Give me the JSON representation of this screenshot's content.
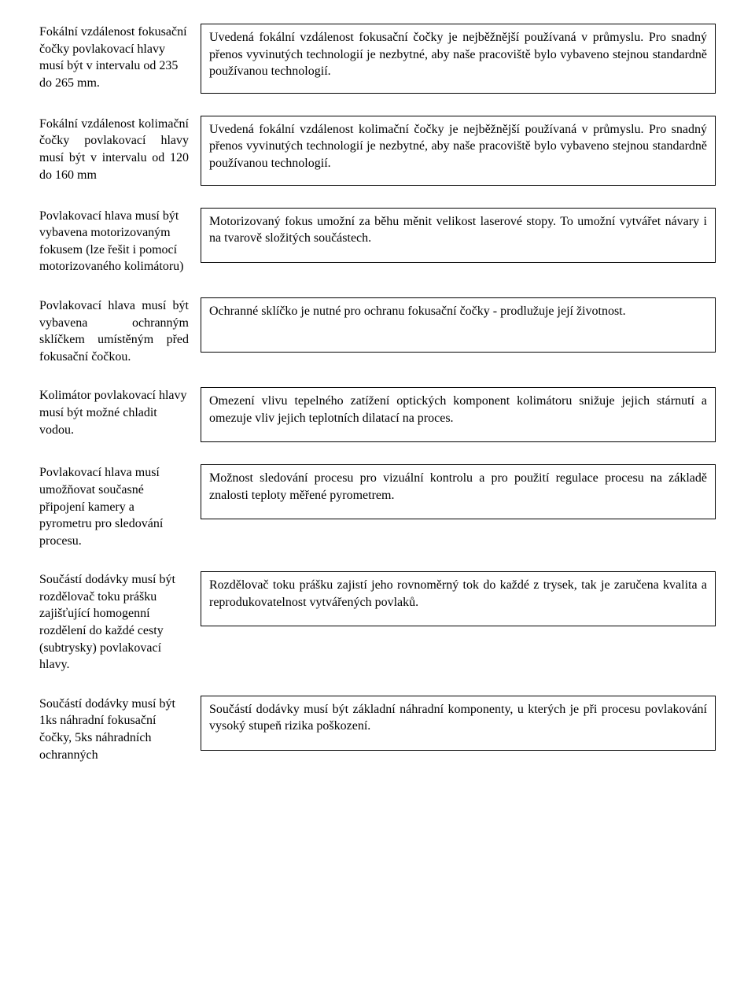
{
  "rows": [
    {
      "left": "Fokální vzdálenost fokusační čočky povlakovací hlavy musí být v intervalu od 235 do 265 mm.",
      "leftClass": "left-normal",
      "right": "Uvedená fokální vzdálenost fokusační čočky je nejběžnější používaná v průmyslu. Pro snadný přenos vyvinutých technologií je nezbytné, aby naše pracoviště bylo vybaveno stejnou standardně používanou technologií."
    },
    {
      "left": "Fokální vzdálenost kolimační čočky povlakovací hlavy musí být v intervalu od 120 do 160 mm",
      "leftClass": "left-justify",
      "right": "Uvedená fokální vzdálenost kolimační čočky je nejběžnější používaná v průmyslu. Pro snadný přenos vyvinutých technologií je nezbytné, aby naše pracoviště bylo vybaveno stejnou standardně používanou technologií."
    },
    {
      "left": "Povlakovací hlava musí být vybavena motorizovaným fokusem (lze řešit i pomocí motorizovaného kolimátoru)",
      "leftClass": "left-normal",
      "right": "Motorizovaný fokus umožní za běhu měnit velikost laserové stopy. To umožní vytvářet návary i na tvarově složitých součástech."
    },
    {
      "left": "Povlakovací hlava musí být vybavena ochranným sklíčkem umístěným před fokusační čočkou.",
      "leftClass": "left-justify",
      "right": "Ochranné sklíčko je nutné pro ochranu fokusační čočky - prodlužuje její životnost."
    },
    {
      "left": "Kolimátor povlakovací hlavy musí být možné chladit vodou.",
      "leftClass": "left-normal",
      "right": "Omezení vlivu tepelného zatížení optických komponent kolimátoru snižuje jejich stárnutí a omezuje vliv jejich teplotních dilatací na proces."
    },
    {
      "left": "Povlakovací hlava musí umožňovat současné připojení kamery a pyrometru pro sledování procesu.",
      "leftClass": "left-normal",
      "right": "Možnost sledování procesu pro vizuální kontrolu a pro použití regulace procesu na základě znalosti teploty měřené pyrometrem."
    },
    {
      "left": "Součástí dodávky musí být rozdělovač toku prášku zajišťující homogenní rozdělení do každé cesty (subtrysky) povlakovací hlavy.",
      "leftClass": "left-normal",
      "right": "Rozdělovač toku prášku zajistí jeho rovnoměrný tok do každé z trysek, tak je zaručena kvalita a reprodukovatelnost vytvářených povlaků."
    },
    {
      "left": "Součástí dodávky musí být 1ks náhradní fokusační čočky, 5ks náhradních ochranných",
      "leftClass": "left-normal",
      "right": "Součástí dodávky musí být základní náhradní komponenty, u kterých je při procesu povlakování vysoký stupeň rizika poškození."
    }
  ]
}
